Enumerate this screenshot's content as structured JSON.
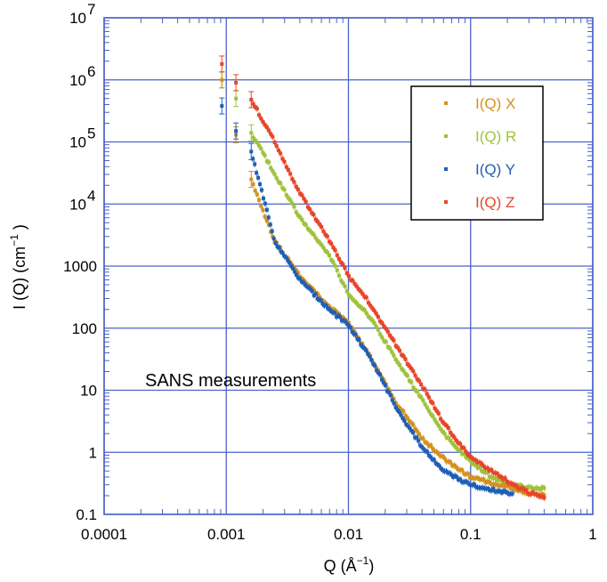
{
  "chart_data": {
    "type": "scatter",
    "title": "",
    "annotation": "SANS measurements",
    "xlabel": {
      "main": "Q",
      "unit_base": "(Å",
      "unit_exp": "−1",
      "unit_close": ")"
    },
    "ylabel": {
      "main": "I (Q)",
      "unit_base": "(cm",
      "unit_exp": "−1",
      "unit_close": ")"
    },
    "x_scale": "log",
    "y_scale": "log",
    "xlim": [
      0.0001,
      1
    ],
    "ylim": [
      0.1,
      10000000
    ],
    "x_ticks": [
      {
        "value": 0.0001,
        "label": "0.0001"
      },
      {
        "value": 0.001,
        "label": "0.001"
      },
      {
        "value": 0.01,
        "label": "0.01"
      },
      {
        "value": 0.1,
        "label": "0.1"
      },
      {
        "value": 1,
        "label": "1"
      }
    ],
    "y_ticks": [
      {
        "value": 0.1,
        "label": "0.1"
      },
      {
        "value": 1,
        "label": "1"
      },
      {
        "value": 10,
        "label": "10"
      },
      {
        "value": 100,
        "label": "100"
      },
      {
        "value": 1000,
        "label": "1000"
      },
      {
        "value": 10000,
        "label": "10",
        "exp": "4"
      },
      {
        "value": 100000,
        "label": "10",
        "exp": "5"
      },
      {
        "value": 1000000,
        "label": "10",
        "exp": "6"
      },
      {
        "value": 10000000,
        "label": "10",
        "exp": "7"
      }
    ],
    "grid": true,
    "legend_position": "top-right",
    "series": [
      {
        "name": "I(Q) X",
        "color": "#d4911f",
        "x": [
          0.00092,
          0.0012,
          0.0016,
          0.0025,
          0.004,
          0.007,
          0.01,
          0.015,
          0.025,
          0.04,
          0.06,
          0.1,
          0.15,
          0.2,
          0.3,
          0.4
        ],
        "y": [
          1000000,
          130000,
          25000,
          2500,
          700,
          220,
          120,
          35,
          6,
          1.7,
          0.8,
          0.4,
          0.32,
          0.28,
          0.22,
          0.2
        ]
      },
      {
        "name": "I(Q) R",
        "color": "#9fc33b",
        "x": [
          0.00092,
          0.0012,
          0.0016,
          0.0025,
          0.004,
          0.007,
          0.01,
          0.015,
          0.025,
          0.04,
          0.06,
          0.1,
          0.15,
          0.2,
          0.3,
          0.4
        ],
        "y": [
          1000000,
          500000,
          140000,
          30000,
          6000,
          1500,
          350,
          150,
          30,
          7,
          2,
          0.7,
          0.4,
          0.3,
          0.27,
          0.26
        ]
      },
      {
        "name": "I(Q) Y",
        "color": "#1f5fb5",
        "x": [
          0.00092,
          0.0012,
          0.0016,
          0.0025,
          0.004,
          0.007,
          0.01,
          0.015,
          0.025,
          0.04,
          0.06,
          0.1,
          0.15,
          0.2,
          0.22
        ],
        "y": [
          380000,
          150000,
          70000,
          2500,
          600,
          200,
          110,
          35,
          5,
          1.2,
          0.5,
          0.3,
          0.25,
          0.22,
          0.21
        ]
      },
      {
        "name": "I(Q) Z",
        "color": "#e8452a",
        "x": [
          0.00092,
          0.0012,
          0.0016,
          0.0025,
          0.004,
          0.007,
          0.01,
          0.015,
          0.025,
          0.04,
          0.06,
          0.1,
          0.15,
          0.2,
          0.3,
          0.4
        ],
        "y": [
          1800000,
          900000,
          480000,
          100000,
          15000,
          2500,
          700,
          250,
          50,
          12,
          3,
          0.8,
          0.5,
          0.35,
          0.22,
          0.19
        ]
      }
    ]
  }
}
